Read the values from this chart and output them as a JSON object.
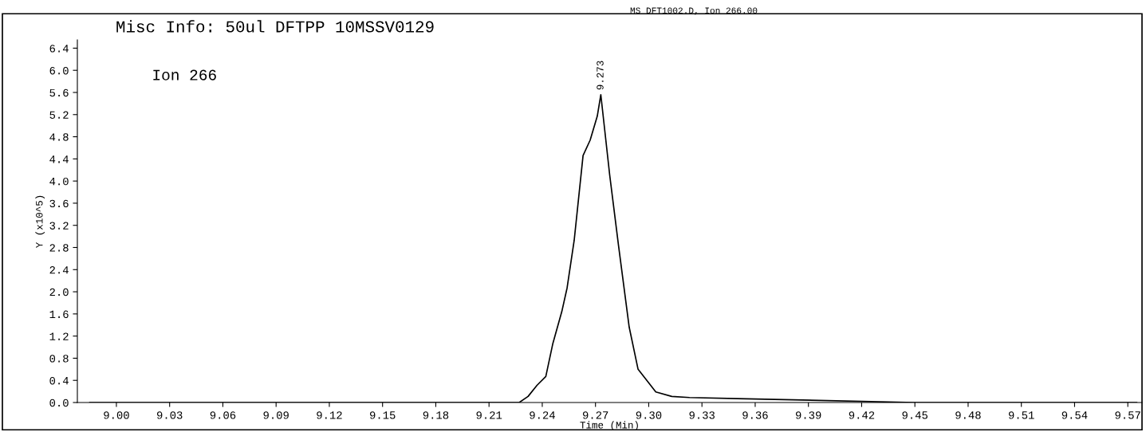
{
  "chart_data": {
    "type": "line",
    "title": "Misc Info: 50ul DFTPP 10MSSV0129",
    "subtitle": "MS DFT1002.D, Ion 266.00",
    "xlabel": "Time (Min)",
    "ylabel": "Y (x10^5)",
    "annotations": [
      "Ion 266",
      {
        "text": "9.273",
        "x": 9.273,
        "y": 5.56
      }
    ],
    "x": [
      8.985,
      9.1,
      9.2,
      9.227,
      9.232,
      9.237,
      9.242,
      9.246,
      9.251,
      9.254,
      9.258,
      9.263,
      9.267,
      9.271,
      9.273,
      9.278,
      9.283,
      9.289,
      9.294,
      9.304,
      9.313,
      9.323,
      9.35,
      9.45,
      9.575
    ],
    "series": [
      {
        "color": "#000000",
        "values": [
          0.0,
          0.0,
          0.0,
          0.0,
          0.11,
          0.31,
          0.47,
          1.07,
          1.64,
          2.07,
          2.93,
          4.46,
          4.74,
          5.17,
          5.56,
          4.11,
          2.83,
          1.36,
          0.6,
          0.19,
          0.11,
          0.09,
          0.07,
          0.0,
          0.0
        ]
      }
    ],
    "xlim": [
      8.978,
      9.578
    ],
    "ylim": [
      0,
      6.55
    ],
    "xticks": [
      {
        "value": 9.0,
        "label": "9.00"
      },
      {
        "value": 9.03,
        "label": "9.03"
      },
      {
        "value": 9.06,
        "label": "9.06"
      },
      {
        "value": 9.09,
        "label": "9.09"
      },
      9.12,
      9.15,
      9.18,
      9.21,
      9.24,
      9.27,
      {
        "value": 9.3,
        "label": "9.30"
      },
      9.33,
      9.36,
      9.39,
      9.42,
      9.45,
      9.48,
      9.51,
      9.54,
      9.57
    ],
    "yticks": [
      {
        "value": 0,
        "label": "0.0"
      },
      0.4,
      0.8,
      1.2,
      1.6,
      {
        "value": 2,
        "label": "2.0"
      },
      2.4,
      2.8,
      3.2,
      3.6,
      {
        "value": 4,
        "label": "4.0"
      },
      4.4,
      4.8,
      5.2,
      5.6,
      {
        "value": 6,
        "label": "6.0"
      },
      6.4
    ],
    "grid": false,
    "legend": false,
    "marker": "none",
    "line_style": "solid"
  }
}
